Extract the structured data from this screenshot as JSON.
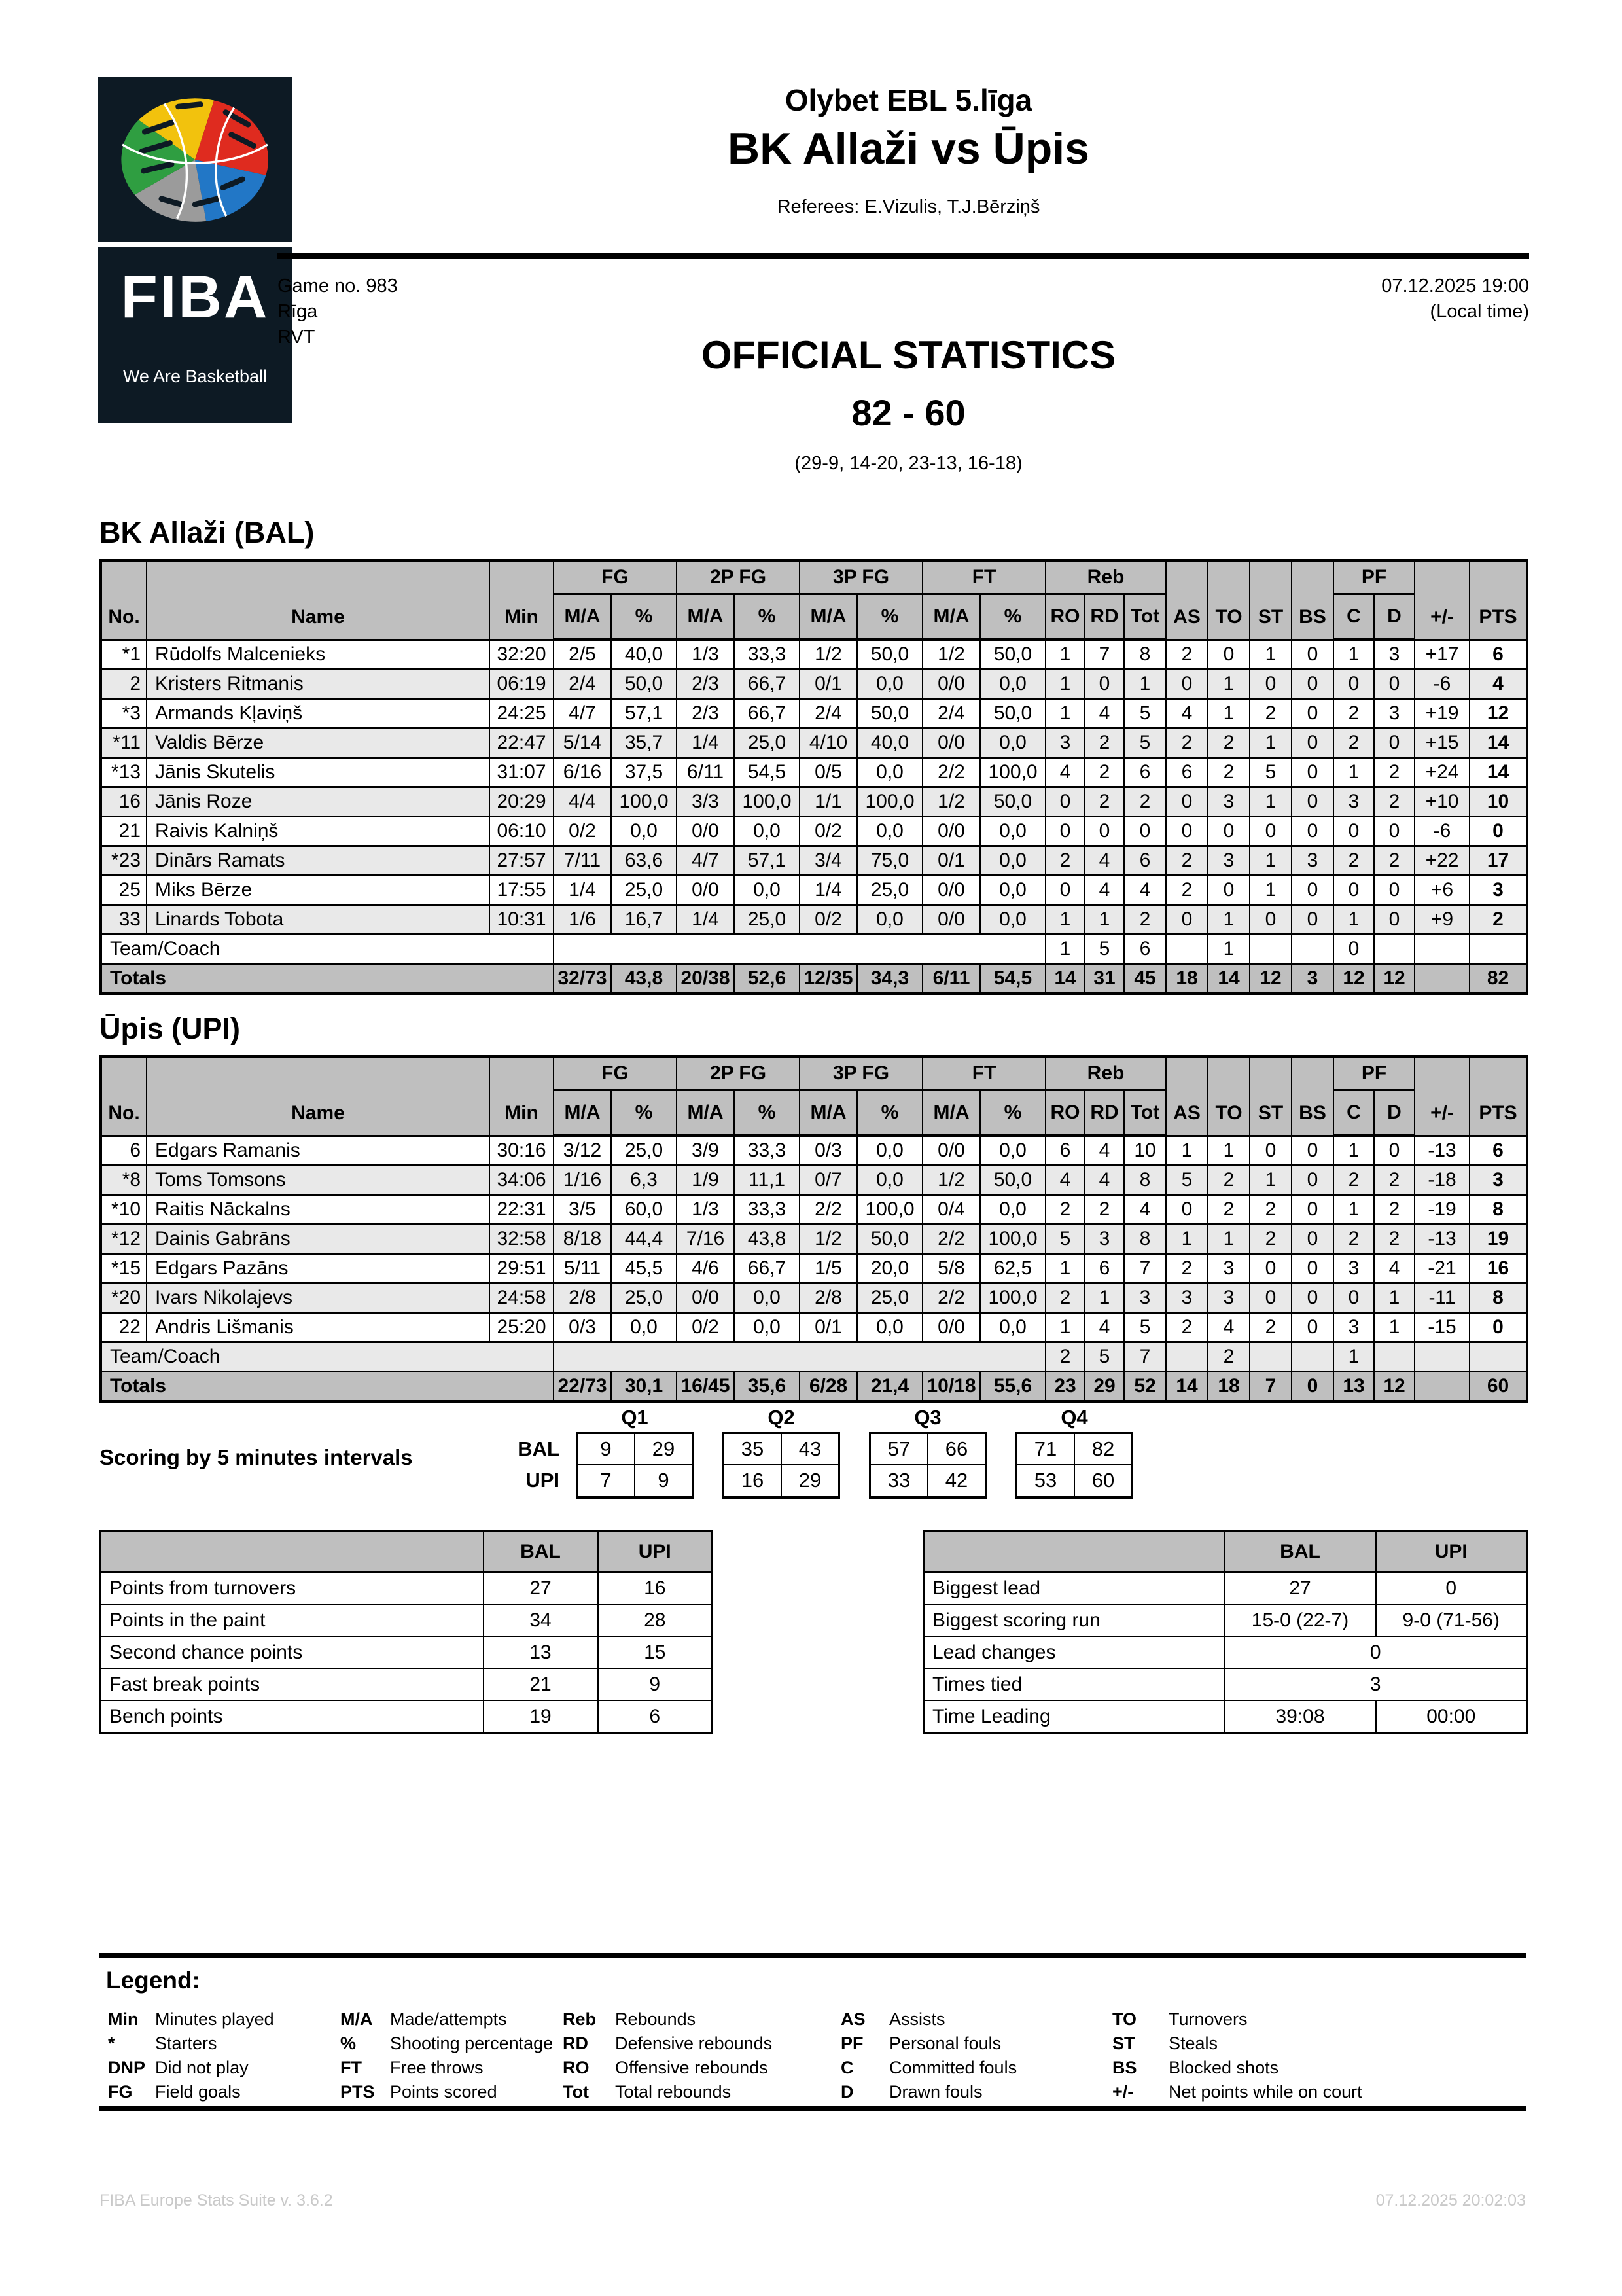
{
  "meta": {
    "league": "Olybet EBL 5.līga",
    "match": "BK Allaži vs Ūpis",
    "referees": "Referees: E.Vizulis, T.J.Bērziņš",
    "game_no": "Game no. 983",
    "city": "Rīga",
    "venue": "RVT",
    "datetime": "07.12.2025 19:00",
    "local_time": "(Local time)",
    "title": "OFFICIAL STATISTICS",
    "score": "82 - 60",
    "quarters": "(29-9, 14-20, 23-13, 16-18)"
  },
  "logo": {
    "fiba": "FIBA",
    "tagline": "We Are Basketball"
  },
  "columns": {
    "no": "No.",
    "name": "Name",
    "min": "Min",
    "groups": {
      "fg": "FG",
      "p2": "2P FG",
      "p3": "3P FG",
      "ft": "FT",
      "reb": "Reb",
      "pf": "PF"
    },
    "ma": "M/A",
    "pct": "%",
    "ro": "RO",
    "rd": "RD",
    "tot": "Tot",
    "as": "AS",
    "to": "TO",
    "st": "ST",
    "bs": "BS",
    "c": "C",
    "d": "D",
    "pm": "+/-",
    "pts": "PTS"
  },
  "teams": [
    {
      "title": "BK Allaži (BAL)",
      "team_label": "Team/Coach",
      "totals_label": "Totals",
      "players": [
        [
          "*1",
          "Rūdolfs Malcenieks",
          "32:20",
          "2/5",
          "40,0",
          "1/3",
          "33,3",
          "1/2",
          "50,0",
          "1/2",
          "50,0",
          "1",
          "7",
          "8",
          "2",
          "0",
          "1",
          "0",
          "1",
          "3",
          "+17",
          "6"
        ],
        [
          "2",
          "Kristers Ritmanis",
          "06:19",
          "2/4",
          "50,0",
          "2/3",
          "66,7",
          "0/1",
          "0,0",
          "0/0",
          "0,0",
          "1",
          "0",
          "1",
          "0",
          "1",
          "0",
          "0",
          "0",
          "0",
          "-6",
          "4"
        ],
        [
          "*3",
          "Armands Kļaviņš",
          "24:25",
          "4/7",
          "57,1",
          "2/3",
          "66,7",
          "2/4",
          "50,0",
          "2/4",
          "50,0",
          "1",
          "4",
          "5",
          "4",
          "1",
          "2",
          "0",
          "2",
          "3",
          "+19",
          "12"
        ],
        [
          "*11",
          "Valdis Bērze",
          "22:47",
          "5/14",
          "35,7",
          "1/4",
          "25,0",
          "4/10",
          "40,0",
          "0/0",
          "0,0",
          "3",
          "2",
          "5",
          "2",
          "2",
          "1",
          "0",
          "2",
          "0",
          "+15",
          "14"
        ],
        [
          "*13",
          "Jānis Skutelis",
          "31:07",
          "6/16",
          "37,5",
          "6/11",
          "54,5",
          "0/5",
          "0,0",
          "2/2",
          "100,0",
          "4",
          "2",
          "6",
          "6",
          "2",
          "5",
          "0",
          "1",
          "2",
          "+24",
          "14"
        ],
        [
          "16",
          "Jānis Roze",
          "20:29",
          "4/4",
          "100,0",
          "3/3",
          "100,0",
          "1/1",
          "100,0",
          "1/2",
          "50,0",
          "0",
          "2",
          "2",
          "0",
          "3",
          "1",
          "0",
          "3",
          "2",
          "+10",
          "10"
        ],
        [
          "21",
          "Raivis Kalniņš",
          "06:10",
          "0/2",
          "0,0",
          "0/0",
          "0,0",
          "0/2",
          "0,0",
          "0/0",
          "0,0",
          "0",
          "0",
          "0",
          "0",
          "0",
          "0",
          "0",
          "0",
          "0",
          "-6",
          "0"
        ],
        [
          "*23",
          "Dinārs Ramats",
          "27:57",
          "7/11",
          "63,6",
          "4/7",
          "57,1",
          "3/4",
          "75,0",
          "0/1",
          "0,0",
          "2",
          "4",
          "6",
          "2",
          "3",
          "1",
          "3",
          "2",
          "2",
          "+22",
          "17"
        ],
        [
          "25",
          "Miks Bērze",
          "17:55",
          "1/4",
          "25,0",
          "0/0",
          "0,0",
          "1/4",
          "25,0",
          "0/0",
          "0,0",
          "0",
          "4",
          "4",
          "2",
          "0",
          "1",
          "0",
          "0",
          "0",
          "+6",
          "3"
        ],
        [
          "33",
          "Linards Tobota",
          "10:31",
          "1/6",
          "16,7",
          "1/4",
          "25,0",
          "0/2",
          "0,0",
          "0/0",
          "0,0",
          "1",
          "1",
          "2",
          "0",
          "1",
          "0",
          "0",
          "1",
          "0",
          "+9",
          "2"
        ]
      ],
      "team_row": [
        "1",
        "5",
        "6",
        "",
        "1",
        "",
        "",
        "0",
        "",
        "",
        ""
      ],
      "totals": [
        "32/73",
        "43,8",
        "20/38",
        "52,6",
        "12/35",
        "34,3",
        "6/11",
        "54,5",
        "14",
        "31",
        "45",
        "18",
        "14",
        "12",
        "3",
        "12",
        "12",
        "",
        "82"
      ]
    },
    {
      "title": "Ūpis (UPI)",
      "team_label": "Team/Coach",
      "totals_label": "Totals",
      "players": [
        [
          "6",
          "Edgars Ramanis",
          "30:16",
          "3/12",
          "25,0",
          "3/9",
          "33,3",
          "0/3",
          "0,0",
          "0/0",
          "0,0",
          "6",
          "4",
          "10",
          "1",
          "1",
          "0",
          "0",
          "1",
          "0",
          "-13",
          "6"
        ],
        [
          "*8",
          "Toms Tomsons",
          "34:06",
          "1/16",
          "6,3",
          "1/9",
          "11,1",
          "0/7",
          "0,0",
          "1/2",
          "50,0",
          "4",
          "4",
          "8",
          "5",
          "2",
          "1",
          "0",
          "2",
          "2",
          "-18",
          "3"
        ],
        [
          "*10",
          "Raitis Nāckalns",
          "22:31",
          "3/5",
          "60,0",
          "1/3",
          "33,3",
          "2/2",
          "100,0",
          "0/4",
          "0,0",
          "2",
          "2",
          "4",
          "0",
          "2",
          "2",
          "0",
          "1",
          "2",
          "-19",
          "8"
        ],
        [
          "*12",
          "Dainis Gabrāns",
          "32:58",
          "8/18",
          "44,4",
          "7/16",
          "43,8",
          "1/2",
          "50,0",
          "2/2",
          "100,0",
          "5",
          "3",
          "8",
          "1",
          "1",
          "2",
          "0",
          "2",
          "2",
          "-13",
          "19"
        ],
        [
          "*15",
          "Edgars Pazāns",
          "29:51",
          "5/11",
          "45,5",
          "4/6",
          "66,7",
          "1/5",
          "20,0",
          "5/8",
          "62,5",
          "1",
          "6",
          "7",
          "2",
          "3",
          "0",
          "0",
          "3",
          "4",
          "-21",
          "16"
        ],
        [
          "*20",
          "Ivars Nikolajevs",
          "24:58",
          "2/8",
          "25,0",
          "0/0",
          "0,0",
          "2/8",
          "25,0",
          "2/2",
          "100,0",
          "2",
          "1",
          "3",
          "3",
          "3",
          "0",
          "0",
          "0",
          "1",
          "-11",
          "8"
        ],
        [
          "22",
          "Andris Lišmanis",
          "25:20",
          "0/3",
          "0,0",
          "0/2",
          "0,0",
          "0/1",
          "0,0",
          "0/0",
          "0,0",
          "1",
          "4",
          "5",
          "2",
          "4",
          "2",
          "0",
          "3",
          "1",
          "-15",
          "0"
        ]
      ],
      "team_row": [
        "2",
        "5",
        "7",
        "",
        "2",
        "",
        "",
        "1",
        "",
        "",
        ""
      ],
      "totals": [
        "22/73",
        "30,1",
        "16/45",
        "35,6",
        "6/28",
        "21,4",
        "10/18",
        "55,6",
        "23",
        "29",
        "52",
        "14",
        "18",
        "7",
        "0",
        "13",
        "12",
        "",
        "60"
      ]
    }
  ],
  "scoring": {
    "label": "Scoring by 5 minutes intervals",
    "row_labels": [
      "BAL",
      "UPI"
    ],
    "quarters": [
      {
        "label": "Q1",
        "bal": [
          "9",
          "29"
        ],
        "upi": [
          "7",
          "9"
        ]
      },
      {
        "label": "Q2",
        "bal": [
          "35",
          "43"
        ],
        "upi": [
          "16",
          "29"
        ]
      },
      {
        "label": "Q3",
        "bal": [
          "57",
          "66"
        ],
        "upi": [
          "33",
          "42"
        ]
      },
      {
        "label": "Q4",
        "bal": [
          "71",
          "82"
        ],
        "upi": [
          "53",
          "60"
        ]
      }
    ]
  },
  "stats_left": {
    "headers": [
      "BAL",
      "UPI"
    ],
    "rows": [
      {
        "label": "Points from turnovers",
        "bal": "27",
        "upi": "16"
      },
      {
        "label": "Points in the paint",
        "bal": "34",
        "upi": "28"
      },
      {
        "label": "Second chance points",
        "bal": "13",
        "upi": "15"
      },
      {
        "label": "Fast break points",
        "bal": "21",
        "upi": "9"
      },
      {
        "label": "Bench points",
        "bal": "19",
        "upi": "6"
      }
    ]
  },
  "stats_right": {
    "headers": [
      "BAL",
      "UPI"
    ],
    "rows": [
      {
        "label": "Biggest lead",
        "bal": "27",
        "upi": "0"
      },
      {
        "label": "Biggest scoring run",
        "bal": "15-0 (22-7)",
        "upi": "9-0 (71-56)"
      },
      {
        "label": "Lead changes",
        "span": "0"
      },
      {
        "label": "Times tied",
        "span": "3"
      },
      {
        "label": "Time Leading",
        "bal": "39:08",
        "upi": "00:00"
      }
    ]
  },
  "legend": {
    "title": "Legend:",
    "columns": [
      [
        {
          "k": "Min",
          "v": "Minutes played"
        },
        {
          "k": "*",
          "v": "Starters"
        },
        {
          "k": "DNP",
          "v": "Did not play"
        },
        {
          "k": "FG",
          "v": "Field goals"
        }
      ],
      [
        {
          "k": "M/A",
          "v": "Made/attempts"
        },
        {
          "k": "%",
          "v": "Shooting percentage"
        },
        {
          "k": "FT",
          "v": "Free throws"
        },
        {
          "k": "PTS",
          "v": "Points scored"
        }
      ],
      [
        {
          "k": "Reb",
          "v": "Rebounds"
        },
        {
          "k": "RD",
          "v": "Defensive rebounds"
        },
        {
          "k": "RO",
          "v": "Offensive rebounds"
        },
        {
          "k": "Tot",
          "v": "Total rebounds"
        }
      ],
      [
        {
          "k": "AS",
          "v": "Assists"
        },
        {
          "k": "PF",
          "v": "Personal fouls"
        },
        {
          "k": "C",
          "v": "Committed fouls"
        },
        {
          "k": "D",
          "v": "Drawn fouls"
        }
      ],
      [
        {
          "k": "TO",
          "v": "Turnovers"
        },
        {
          "k": "ST",
          "v": "Steals"
        },
        {
          "k": "BS",
          "v": "Blocked shots"
        },
        {
          "k": "+/-",
          "v": "Net points while on court"
        }
      ]
    ]
  },
  "footer": {
    "left": "FIBA Europe Stats Suite v. 3.6.2",
    "right": "07.12.2025 20:02:03"
  }
}
